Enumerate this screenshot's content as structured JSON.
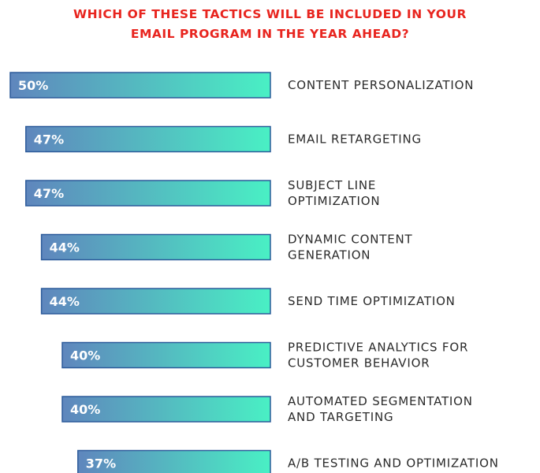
{
  "chart_data": {
    "type": "bar",
    "orientation": "horizontal",
    "title": [
      "WHICH OF THESE TACTICS WILL BE INCLUDED IN YOUR",
      "EMAIL PROGRAM IN THE YEAR AHEAD?"
    ],
    "categories": [
      [
        "CONTENT PERSONALIZATION"
      ],
      [
        "EMAIL RETARGETING"
      ],
      [
        "SUBJECT LINE",
        "OPTIMIZATION"
      ],
      [
        "DYNAMIC CONTENT",
        "GENERATION"
      ],
      [
        "SEND TIME OPTIMIZATION"
      ],
      [
        "PREDICTIVE ANALYTICS FOR",
        "CUSTOMER BEHAVIOR"
      ],
      [
        "AUTOMATED SEGMENTATION",
        "AND TARGETING"
      ],
      [
        "A/B TESTING AND OPTIMIZATION"
      ]
    ],
    "values": [
      50,
      47,
      47,
      44,
      44,
      40,
      40,
      37
    ],
    "value_labels": [
      "50%",
      "47%",
      "47%",
      "44%",
      "44%",
      "40%",
      "40%",
      "37%"
    ],
    "colors": {
      "title": "#e8251f",
      "bar_start": "#5f86bd",
      "bar_end": "#49f0c4",
      "bar_border": "#2c5a9a",
      "label": "#2b2b2b"
    },
    "bars_right_aligned": true,
    "axis_visible": false,
    "grid": false
  }
}
